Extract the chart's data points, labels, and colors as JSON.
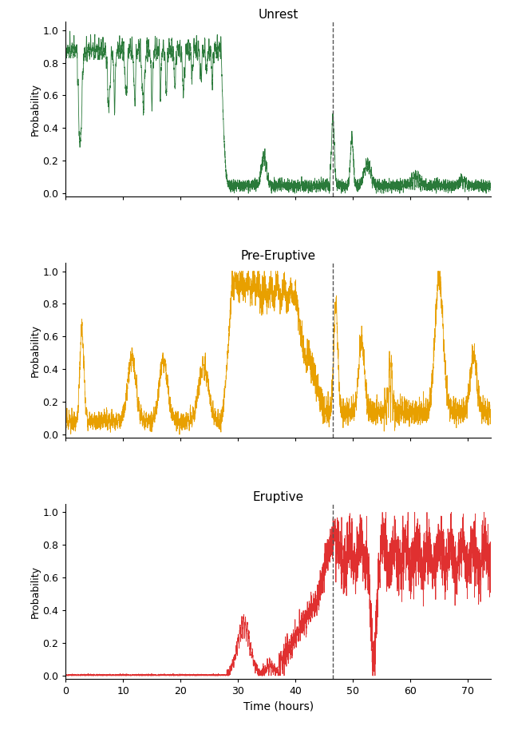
{
  "titles": [
    "Unrest",
    "Pre-Eruptive",
    "Eruptive"
  ],
  "colors": [
    "#2a7a3a",
    "#e8a000",
    "#e03030"
  ],
  "xlabel": "Time (hours)",
  "ylabel": "Probability",
  "xlim": [
    0,
    74
  ],
  "ylim": [
    -0.02,
    1.05
  ],
  "yticks": [
    0.0,
    0.2,
    0.4,
    0.6,
    0.8,
    1.0
  ],
  "xticks": [
    0,
    10,
    20,
    30,
    40,
    50,
    60,
    70
  ],
  "dashed_line_x": 46.5,
  "n_points": 5000,
  "seed": 7,
  "figsize": [
    6.34,
    9.14
  ],
  "dpi": 100,
  "linewidth": 0.6
}
